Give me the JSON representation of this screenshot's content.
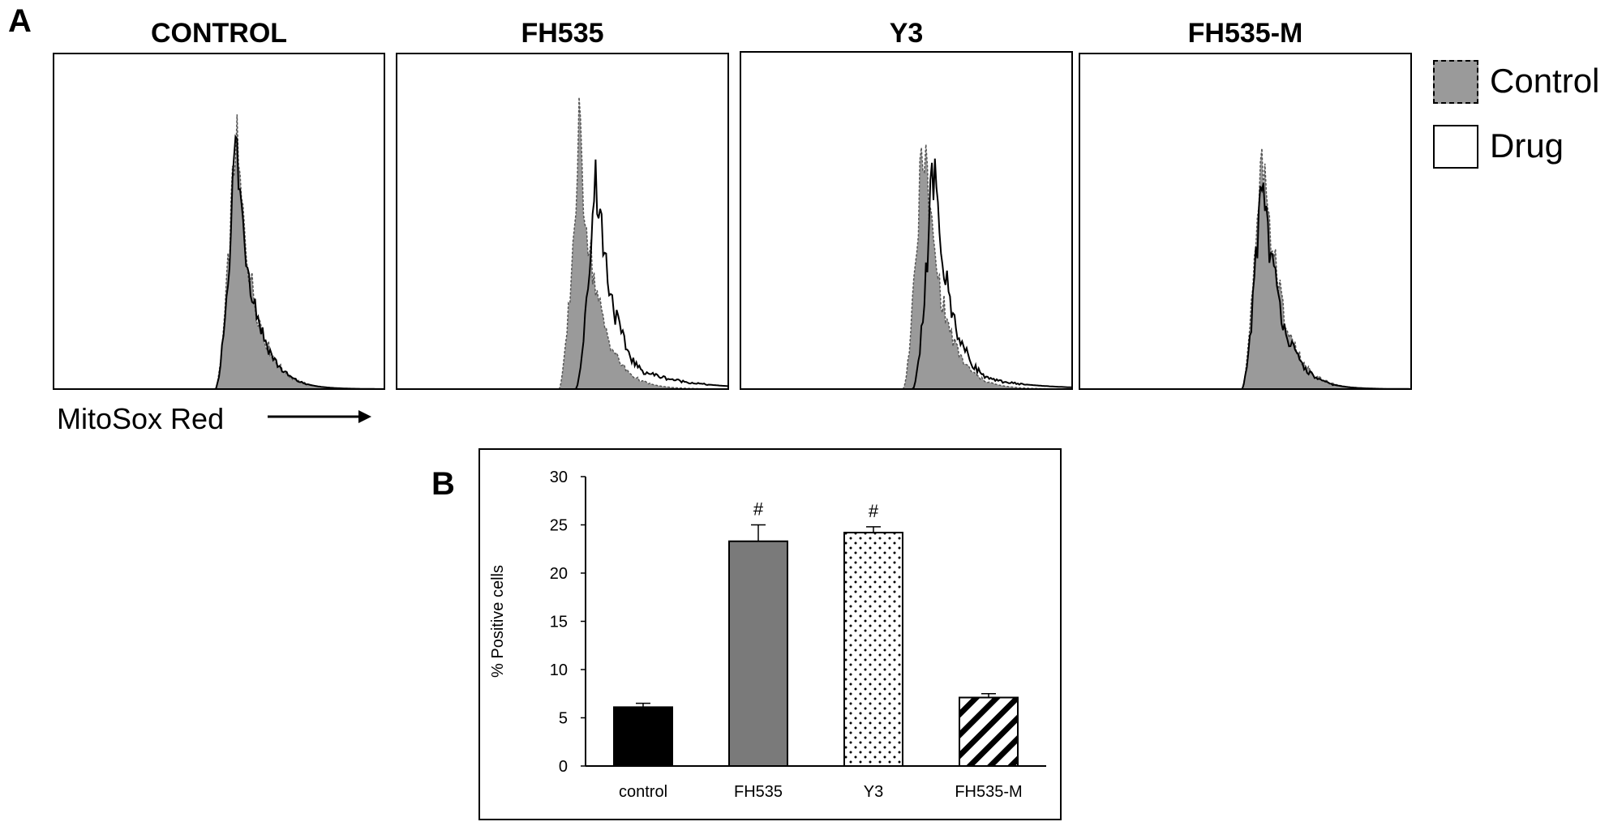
{
  "panel_a": {
    "letter": "A",
    "legend": [
      {
        "label": "Control",
        "fill": "#9a9a9a",
        "border": "dashed"
      },
      {
        "label": "Drug",
        "fill": "#ffffff",
        "border": "solid"
      }
    ],
    "xaxis_label": "MitoSox Red",
    "arrow": "right-arrow",
    "histograms": [
      {
        "title": "CONTROL",
        "control_peak_x": 0.55,
        "drug_peak_x": 0.55,
        "drug_tail": 0.0
      },
      {
        "title": "FH535",
        "control_peak_x": 0.55,
        "drug_peak_x": 0.6,
        "drug_tail": 0.9
      },
      {
        "title": "Y3",
        "control_peak_x": 0.55,
        "drug_peak_x": 0.58,
        "drug_tail": 0.6
      },
      {
        "title": "FH535-M",
        "control_peak_x": 0.55,
        "drug_peak_x": 0.55,
        "drug_tail": 0.05
      }
    ]
  },
  "panel_b": {
    "letter": "B"
  },
  "chart_data": {
    "type": "bar",
    "ylabel": "% Positive cells",
    "ylim": [
      0,
      30
    ],
    "yticks": [
      0,
      5,
      10,
      15,
      20,
      25,
      30
    ],
    "categories": [
      "control",
      "FH535",
      "Y3",
      "FH535-M"
    ],
    "values": [
      6.1,
      23.3,
      24.2,
      7.1
    ],
    "errors": [
      0.4,
      1.7,
      0.6,
      0.4
    ],
    "annotations": [
      "",
      "#",
      "#",
      ""
    ],
    "fills": [
      "solid-black",
      "solid-gray",
      "dotted",
      "hatched"
    ],
    "grid": false
  }
}
